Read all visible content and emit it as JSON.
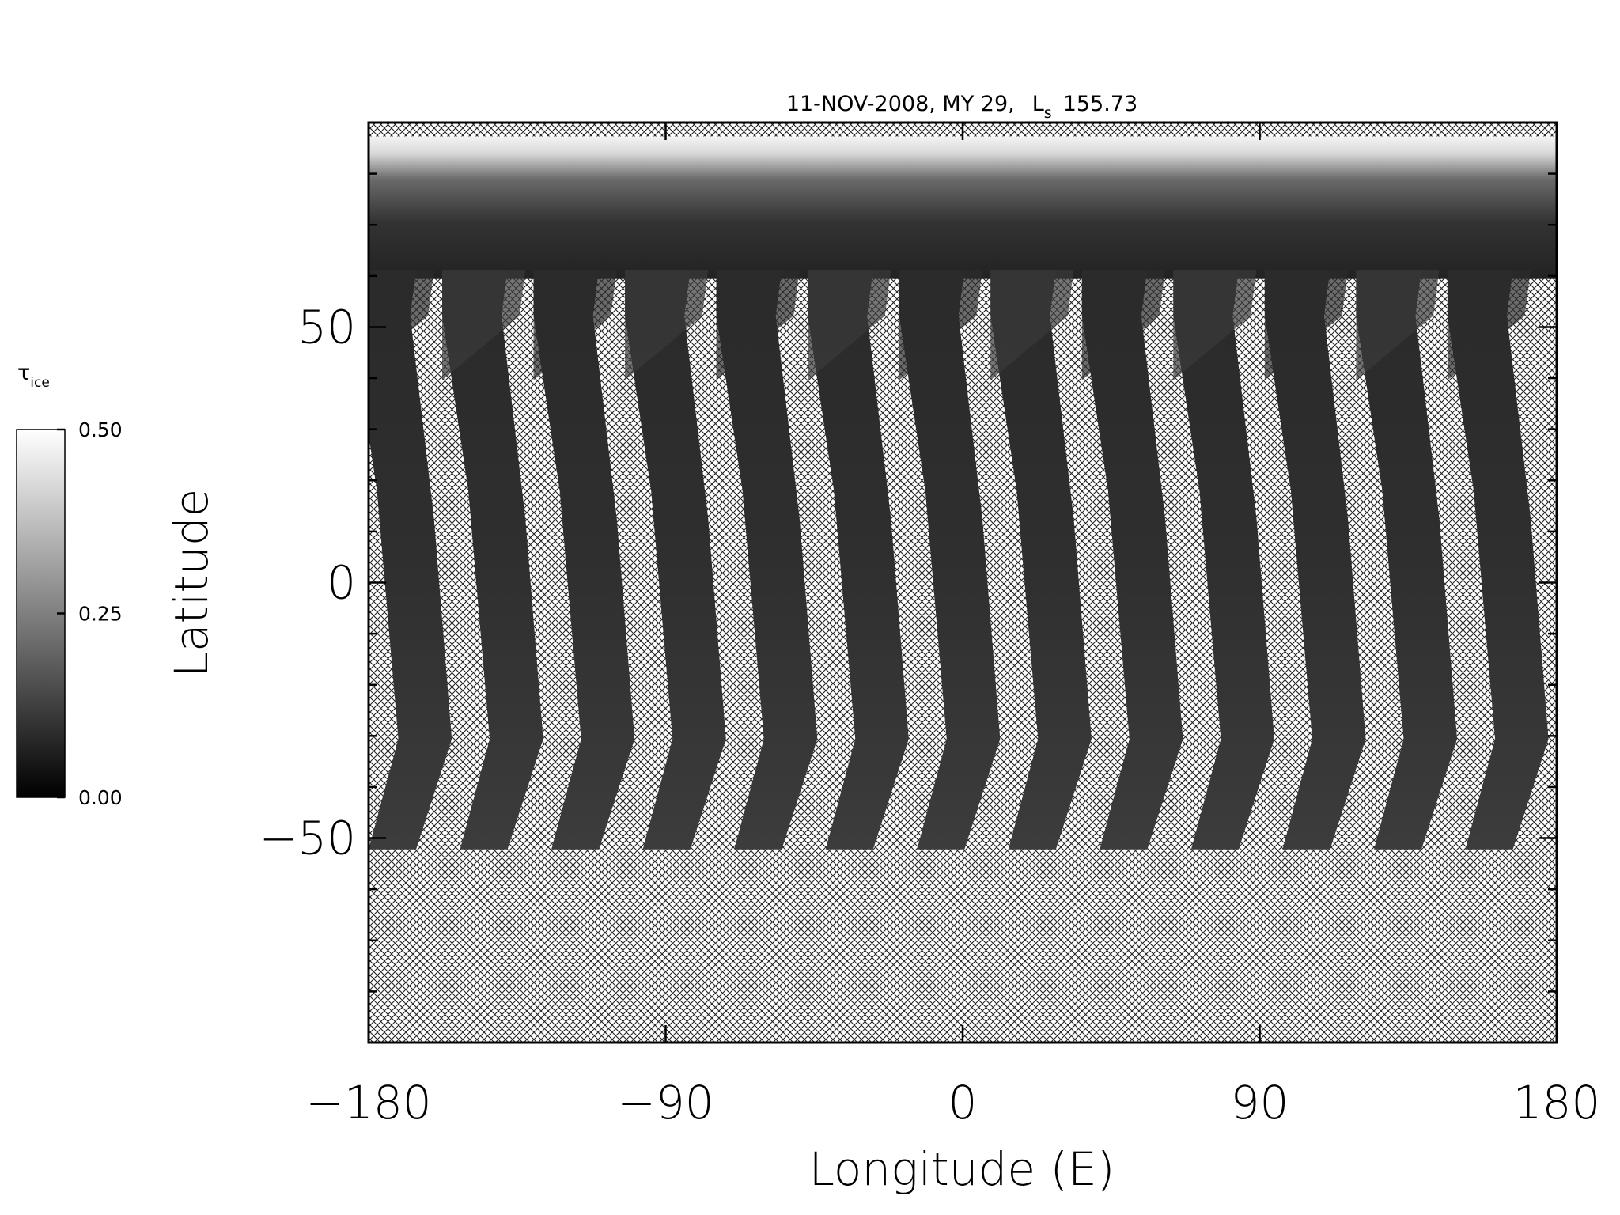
{
  "chart_data": {
    "type": "swath_map",
    "title": "11-NOV-2008, MY 29,",
    "title_symbol": "L",
    "title_symbol_sub": "s",
    "title_value": "155.73",
    "x_label": "Longitude (E)",
    "y_label": "Latitude",
    "xlim": [
      -180,
      180
    ],
    "xticks": [
      {
        "value": -180,
        "label": "−180"
      },
      {
        "value": -90,
        "label": "−90"
      },
      0,
      90,
      180
    ],
    "ylim": [
      -90,
      90
    ],
    "yticks": [
      {
        "value": -50,
        "label": "−50"
      },
      0,
      50
    ],
    "yminorticks": [
      -80,
      -70,
      -60,
      -40,
      -30,
      -20,
      -10,
      10,
      20,
      30,
      40,
      60,
      70,
      80
    ],
    "grid": false,
    "colorbar": {
      "label": "τ",
      "label_sub": "ice",
      "lim": [
        0,
        0.5
      ],
      "ticks": [
        {
          "value": 0,
          "label": "0.00"
        },
        {
          "value": 0.25,
          "label": "0.25"
        },
        {
          "value": 0.5,
          "label": "0.50"
        }
      ]
    }
  }
}
